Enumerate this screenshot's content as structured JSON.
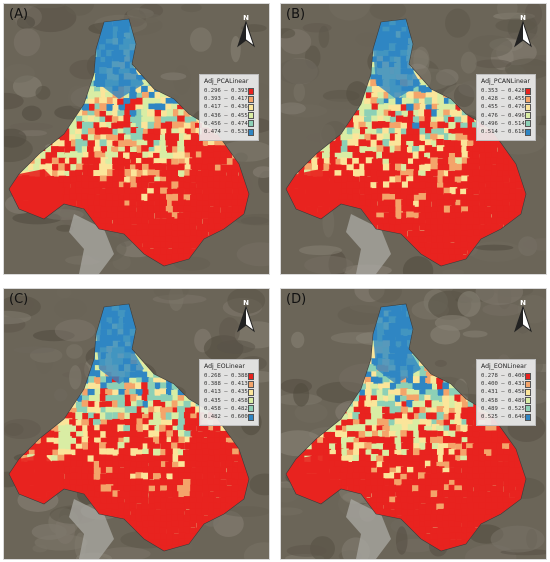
{
  "figure": {
    "panels": [
      {
        "label": "(A)",
        "north_letter": "N",
        "legend_title": "Adj_PCALinear",
        "classes": [
          "0.296 – 0.393",
          "0.393 – 0.417",
          "0.417 – 0.436",
          "0.436 – 0.455",
          "0.456 – 0.474",
          "0.474 – 0.533"
        ],
        "theme": "a"
      },
      {
        "label": "(B)",
        "north_letter": "N",
        "legend_title": "Adj_PCANLinear",
        "classes": [
          "0.353 – 0.428",
          "0.428 – 0.455",
          "0.455 – 0.476",
          "0.476 – 0.496",
          "0.496 – 0.514",
          "0.514 – 0.618"
        ],
        "theme": "b"
      },
      {
        "label": "(C)",
        "north_letter": "N",
        "legend_title": "Adj_EOLinear",
        "classes": [
          "0.268 – 0.388",
          "0.388 – 0.413",
          "0.413 – 0.435",
          "0.435 – 0.458",
          "0.458 – 0.482",
          "0.482 – 0.600"
        ],
        "theme": "c"
      },
      {
        "label": "(D)",
        "north_letter": "N",
        "legend_title": "Adj_EONLinear",
        "classes": [
          "0.278 – 0.400",
          "0.400 – 0.431",
          "0.431 – 0.458",
          "0.458 – 0.489",
          "0.489 – 0.525",
          "0.525 – 0.646"
        ],
        "theme": "d"
      }
    ],
    "class_colors": [
      "#e8231f",
      "#f4a46a",
      "#fbe59a",
      "#d9eda4",
      "#8cd0b6",
      "#2f86c3"
    ],
    "background_color": "#6b6558"
  }
}
